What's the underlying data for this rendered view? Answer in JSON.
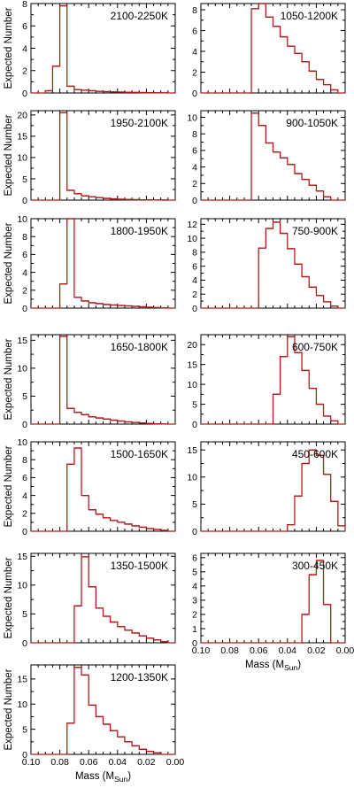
{
  "figure": {
    "ylabel": "Expected Number",
    "xlabel": "Mass (M",
    "xlabel_sub": "Sun",
    "xlabel_close": ")",
    "line_color": "#b01c1c",
    "frame_color": "#000000"
  },
  "chart_data": [
    {
      "type": "histogram",
      "label": "2100-2250K",
      "xlim": [
        0.1,
        0.0
      ],
      "ylim": [
        0,
        8
      ],
      "yticks": [
        0,
        2,
        4,
        6,
        8
      ],
      "xticks": [],
      "bin_width": 0.005,
      "bins_start": 0.085,
      "values": [
        0.2,
        2.4,
        7.8,
        0.6,
        0.3,
        0.25,
        0.2,
        0.15,
        0.12,
        0.1,
        0.08,
        0.06,
        0.05,
        0.04,
        0.03,
        0.02,
        0.01
      ]
    },
    {
      "type": "histogram",
      "label": "1050-1200K",
      "xlim": [
        0.1,
        0.0
      ],
      "ylim": [
        0,
        8.6
      ],
      "yticks": [
        0,
        2,
        4,
        6,
        8
      ],
      "xticks": [],
      "bin_width": 0.005,
      "bins_start": 0.06,
      "values": [
        8.1,
        8.6,
        7.3,
        6.4,
        5.4,
        4.5,
        3.8,
        3.0,
        2.1,
        1.3,
        0.8,
        0.3
      ]
    },
    {
      "type": "histogram",
      "label": "1950-2100K",
      "xlim": [
        0.1,
        0.0
      ],
      "ylim": [
        0,
        21
      ],
      "yticks": [
        0,
        5,
        10,
        15,
        20
      ],
      "xticks": [],
      "bin_width": 0.005,
      "bins_start": 0.075,
      "values": [
        20.5,
        2.3,
        1.5,
        1.0,
        0.8,
        0.6,
        0.4,
        0.3,
        0.2,
        0.15,
        0.1,
        0.08,
        0.05,
        0.03,
        0.01
      ]
    },
    {
      "type": "histogram",
      "label": "900-1050K",
      "xlim": [
        0.1,
        0.0
      ],
      "ylim": [
        0,
        10.8
      ],
      "yticks": [
        0,
        2,
        4,
        6,
        8,
        10
      ],
      "xticks": [],
      "bin_width": 0.005,
      "bins_start": 0.06,
      "values": [
        10.5,
        9.0,
        6.9,
        5.8,
        5.1,
        4.3,
        3.2,
        2.5,
        1.8,
        1.1,
        0.4
      ]
    },
    {
      "type": "histogram",
      "label": "1800-1950K",
      "xlim": [
        0.1,
        0.0
      ],
      "ylim": [
        0,
        10
      ],
      "yticks": [
        0,
        2,
        4,
        6,
        8,
        10
      ],
      "xticks": [],
      "bin_width": 0.005,
      "bins_start": 0.075,
      "values": [
        2.7,
        10.0,
        1.2,
        0.8,
        0.6,
        0.5,
        0.4,
        0.35,
        0.3,
        0.25,
        0.2,
        0.15,
        0.1,
        0.06,
        0.03
      ]
    },
    {
      "type": "histogram",
      "label": "750-900K",
      "xlim": [
        0.1,
        0.0
      ],
      "ylim": [
        0,
        12.8
      ],
      "yticks": [
        0,
        2,
        4,
        6,
        8,
        10,
        12
      ],
      "xticks": [],
      "bin_width": 0.005,
      "bins_start": 0.055,
      "values": [
        8.6,
        11.4,
        12.3,
        10.7,
        8.5,
        6.3,
        4.5,
        3.0,
        1.8,
        0.9,
        0.3
      ]
    },
    {
      "type": "histogram",
      "label": "1650-1800K",
      "xlim": [
        0.1,
        0.0
      ],
      "ylim": [
        0,
        16
      ],
      "yticks": [
        0,
        5,
        10,
        15
      ],
      "xticks": [],
      "bin_width": 0.005,
      "bins_start": 0.075,
      "values": [
        15.7,
        2.8,
        2.1,
        1.7,
        1.3,
        1.1,
        0.9,
        0.7,
        0.55,
        0.4,
        0.3,
        0.2,
        0.12,
        0.06,
        0.02
      ]
    },
    {
      "type": "histogram",
      "label": "600-750K",
      "xlim": [
        0.1,
        0.0
      ],
      "ylim": [
        0,
        22.5
      ],
      "yticks": [
        0,
        5,
        10,
        15,
        20
      ],
      "xticks": [],
      "bin_width": 0.005,
      "bins_start": 0.045,
      "values": [
        7.5,
        17.0,
        22.0,
        18.0,
        13.5,
        9.0,
        5.0,
        2.0,
        0.8
      ]
    },
    {
      "type": "histogram",
      "label": "1500-1650K",
      "xlim": [
        0.1,
        0.0
      ],
      "ylim": [
        0,
        10
      ],
      "yticks": [
        0,
        2,
        4,
        6,
        8,
        10
      ],
      "xticks": [],
      "bin_width": 0.005,
      "bins_start": 0.07,
      "values": [
        7.5,
        9.3,
        4.0,
        2.4,
        1.9,
        1.5,
        1.2,
        1.0,
        0.8,
        0.6,
        0.45,
        0.3,
        0.2,
        0.1
      ]
    },
    {
      "type": "histogram",
      "label": "450-600K",
      "xlim": [
        0.1,
        0.0
      ],
      "ylim": [
        0,
        16.5
      ],
      "yticks": [
        0,
        5,
        10,
        15
      ],
      "xticks": [],
      "bin_width": 0.005,
      "bins_start": 0.035,
      "values": [
        1.2,
        6.5,
        12.5,
        15.0,
        14.0,
        10.5,
        5.5,
        1.0
      ]
    },
    {
      "type": "histogram",
      "label": "1350-1500K",
      "xlim": [
        0.1,
        0.0
      ],
      "ylim": [
        0,
        15.5
      ],
      "yticks": [
        0,
        5,
        10,
        15
      ],
      "xticks": [],
      "bin_width": 0.005,
      "bins_start": 0.065,
      "values": [
        6.4,
        14.9,
        9.7,
        6.0,
        4.6,
        3.6,
        2.8,
        2.2,
        1.7,
        1.2,
        0.8,
        0.5,
        0.2
      ]
    },
    {
      "type": "histogram",
      "label": "300-450K",
      "xlim": [
        0.1,
        0.0
      ],
      "ylim": [
        0,
        6.3
      ],
      "yticks": [
        0,
        1,
        2,
        3,
        4,
        5,
        6
      ],
      "xticks": [
        0.1,
        0.08,
        0.06,
        0.04,
        0.02,
        0.0
      ],
      "xticklabels": [
        "0.10",
        "0.08",
        "0.06",
        "0.04",
        "0.02",
        "0.00"
      ],
      "bin_width": 0.005,
      "bins_start": 0.025,
      "values": [
        2.0,
        4.8,
        5.8,
        2.7
      ]
    },
    {
      "type": "histogram",
      "label": "1200-1350K",
      "xlim": [
        0.1,
        0.0
      ],
      "ylim": [
        0,
        17.8
      ],
      "yticks": [
        0,
        5,
        10,
        15
      ],
      "xticks": [
        0.1,
        0.08,
        0.06,
        0.04,
        0.02,
        0.0
      ],
      "xticklabels": [
        "0.10",
        "0.08",
        "0.06",
        "0.04",
        "0.02",
        "0.00"
      ],
      "bin_width": 0.005,
      "bins_start": 0.07,
      "values": [
        6.2,
        17.3,
        15.8,
        9.8,
        7.5,
        6.0,
        4.7,
        3.5,
        2.5,
        1.7,
        1.0,
        0.6,
        0.3
      ]
    }
  ]
}
